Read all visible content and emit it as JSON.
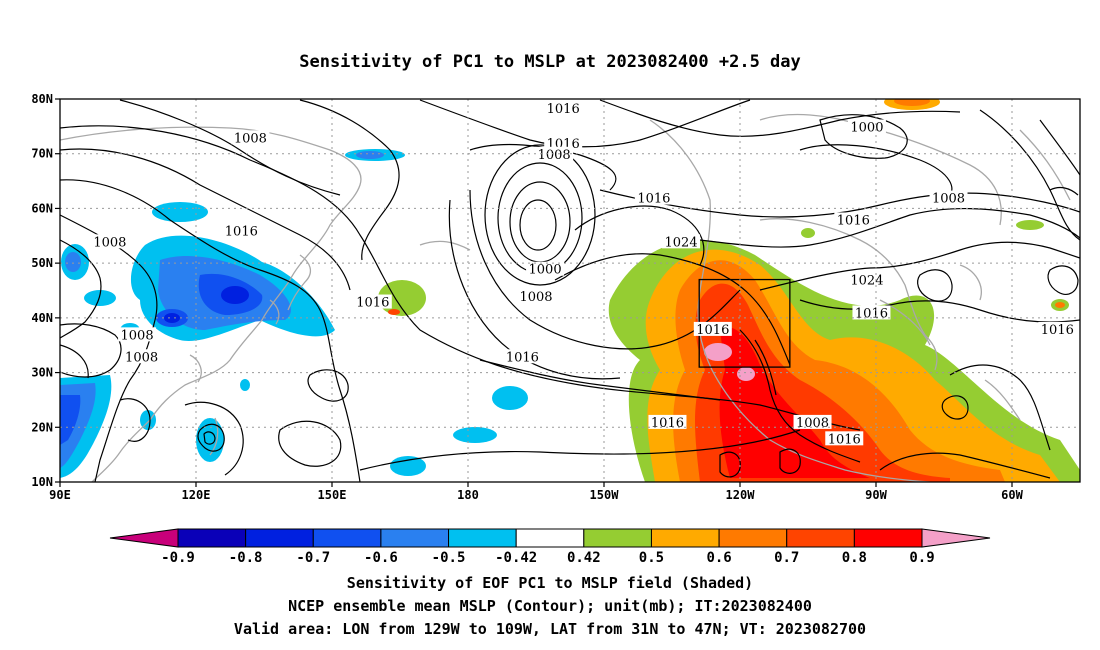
{
  "title": "Sensitivity of PC1 to MSLP at 2023082400 +2.5 day",
  "map": {
    "lon_range": [
      90,
      315
    ],
    "lat_range": [
      10,
      80
    ],
    "lat_ticks": [
      {
        "v": 80,
        "t": "80N"
      },
      {
        "v": 70,
        "t": "70N"
      },
      {
        "v": 60,
        "t": "60N"
      },
      {
        "v": 50,
        "t": "50N"
      },
      {
        "v": 40,
        "t": "40N"
      },
      {
        "v": 30,
        "t": "30N"
      },
      {
        "v": 20,
        "t": "20N"
      },
      {
        "v": 10,
        "t": "10N"
      }
    ],
    "lon_ticks": [
      {
        "v": 90,
        "t": "90E"
      },
      {
        "v": 120,
        "t": "120E"
      },
      {
        "v": 150,
        "t": "150E"
      },
      {
        "v": 180,
        "t": "180"
      },
      {
        "v": 210,
        "t": "150W"
      },
      {
        "v": 240,
        "t": "120W"
      },
      {
        "v": 270,
        "t": "90W"
      },
      {
        "v": 300,
        "t": "60W"
      }
    ],
    "valid_box": {
      "lon": [
        231,
        251
      ],
      "lat": [
        31,
        47
      ]
    }
  },
  "contour_labels": [
    {
      "t": "1016",
      "lon": 201,
      "lat": 78.2
    },
    {
      "t": "1008",
      "lon": 132,
      "lat": 72.8
    },
    {
      "t": "1016",
      "lon": 201,
      "lat": 71.8
    },
    {
      "t": "1008",
      "lon": 199,
      "lat": 69.8
    },
    {
      "t": "1000",
      "lon": 268,
      "lat": 74.8
    },
    {
      "t": "1008",
      "lon": 286,
      "lat": 61.8
    },
    {
      "t": "1016",
      "lon": 221,
      "lat": 61.8
    },
    {
      "t": "1016",
      "lon": 265,
      "lat": 57.8
    },
    {
      "t": "1008",
      "lon": 101,
      "lat": 53.8
    },
    {
      "t": "1016",
      "lon": 130,
      "lat": 55.8
    },
    {
      "t": "1024",
      "lon": 227,
      "lat": 53.8
    },
    {
      "t": "1000",
      "lon": 197,
      "lat": 48.8
    },
    {
      "t": "1008",
      "lon": 195,
      "lat": 43.8
    },
    {
      "t": "1024",
      "lon": 268,
      "lat": 46.8
    },
    {
      "t": "1016",
      "lon": 159,
      "lat": 42.8
    },
    {
      "t": "1016",
      "lon": 269,
      "lat": 40.8
    },
    {
      "t": "1016",
      "lon": 234,
      "lat": 37.8
    },
    {
      "t": "1016",
      "lon": 310,
      "lat": 37.8
    },
    {
      "t": "1008",
      "lon": 107,
      "lat": 36.8
    },
    {
      "t": "1008",
      "lon": 108,
      "lat": 32.8
    },
    {
      "t": "1016",
      "lon": 192,
      "lat": 32.8
    },
    {
      "t": "1016",
      "lon": 224,
      "lat": 20.8
    },
    {
      "t": "1008",
      "lon": 256,
      "lat": 20.8
    },
    {
      "t": "1016",
      "lon": 263,
      "lat": 17.8
    }
  ],
  "colorbar": {
    "colors": [
      "#c8007a",
      "#0a00b8",
      "#0020e0",
      "#1050f0",
      "#2a80f0",
      "#00c0f0",
      "#ffffff",
      "#95cd32",
      "#ffaa00",
      "#ff7a00",
      "#ff4400",
      "#ff0000",
      "#f4a0c8"
    ],
    "labels": [
      "-0.9",
      "-0.8",
      "-0.7",
      "-0.6",
      "-0.5",
      "-0.42",
      "0.42",
      "0.5",
      "0.6",
      "0.7",
      "0.8",
      "0.9"
    ]
  },
  "caption": [
    "Sensitivity of EOF PC1 to MSLP field (Shaded)",
    "NCEP ensemble mean MSLP (Contour); unit(mb); IT:2023082400",
    "Valid area: LON from 129W to 109W, LAT from 31N to 47N; VT: 2023082700"
  ]
}
